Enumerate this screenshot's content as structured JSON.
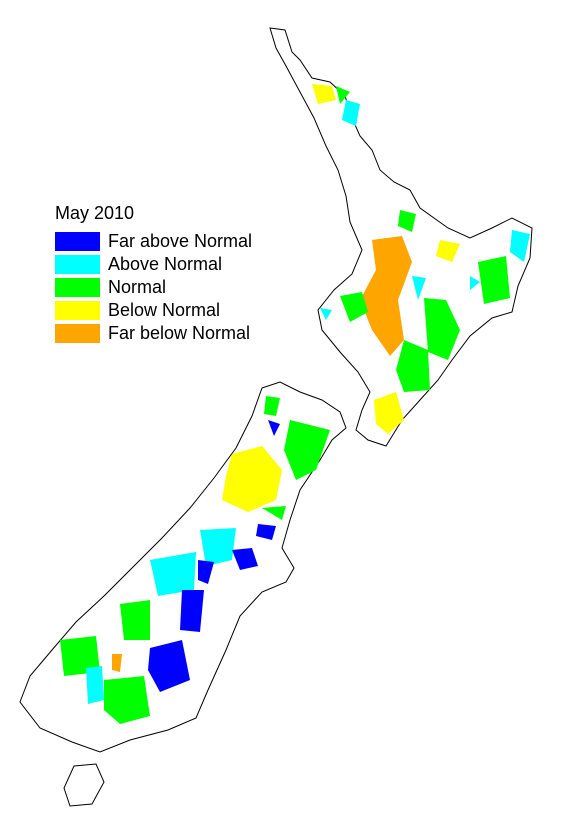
{
  "legend": {
    "title": "May 2010",
    "items": [
      {
        "label": "Far above Normal",
        "color": "#0000ff"
      },
      {
        "label": "Above Normal",
        "color": "#00ffff"
      },
      {
        "label": "Normal",
        "color": "#00ff00"
      },
      {
        "label": "Below Normal",
        "color": "#ffff00"
      },
      {
        "label": "Far below Normal",
        "color": "#ffa500"
      }
    ]
  }
}
